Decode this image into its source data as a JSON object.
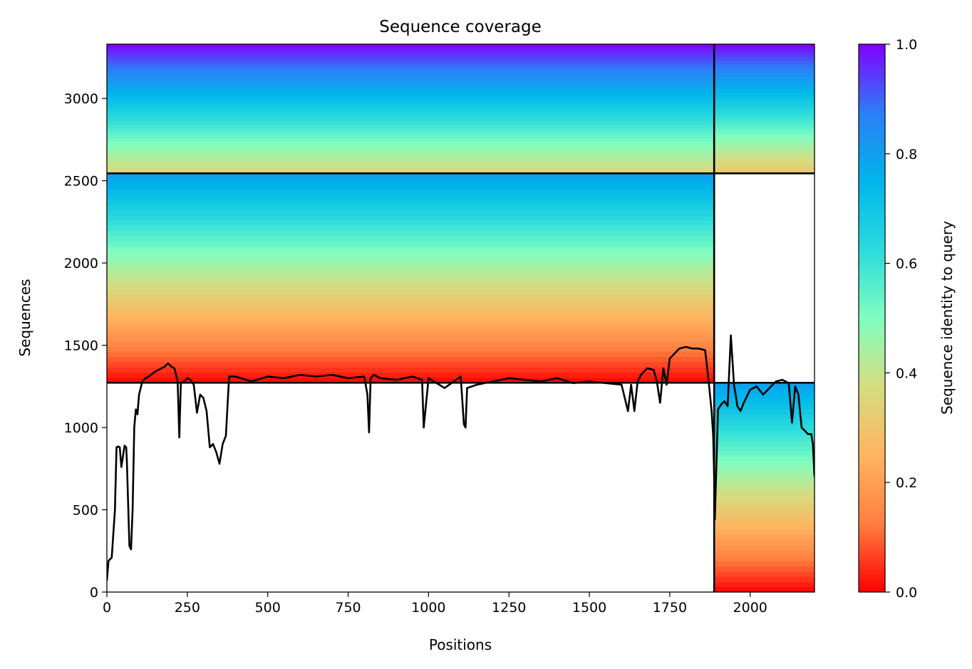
{
  "chart_data": {
    "type": "heatmap",
    "title": "Sequence coverage",
    "xlabel": "Positions",
    "ylabel": "Sequences",
    "xlim": [
      0,
      2200
    ],
    "ylim": [
      0,
      3330
    ],
    "xticks": [
      0,
      250,
      500,
      750,
      1000,
      1250,
      1500,
      1750,
      2000
    ],
    "yticks": [
      0,
      500,
      1000,
      1500,
      2000,
      2500,
      3000
    ],
    "colorbar": {
      "label": "Sequence identity to query",
      "range": [
        0,
        1
      ],
      "ticks": [
        "0.0",
        "0.2",
        "0.4",
        "0.6",
        "0.8",
        "1.0"
      ],
      "colormap": [
        "#ff0000",
        "#ff7f41",
        "#ffb560",
        "#d4dd80",
        "#80fec0",
        "#2adcdc",
        "#00b5eb",
        "#2c7ef7",
        "#8000ff"
      ]
    },
    "boundaries": {
      "vertical_x": 1888,
      "horizontal_upper_y": 2545,
      "horizontal_right_y": 1272
    },
    "segments": [
      {
        "x_start": 0,
        "x_end": 1888,
        "y_start": 1272,
        "y_end": 2545,
        "identity_bottom": 0.0,
        "identity_top": 0.8
      },
      {
        "x_start": 0,
        "x_end": 1888,
        "y_start": 2545,
        "y_end": 3330,
        "identity_bottom": 0.35,
        "identity_top": 1.0
      },
      {
        "x_start": 1888,
        "x_end": 2200,
        "y_start": 2545,
        "y_end": 3330,
        "identity_bottom": 0.3,
        "identity_top": 1.0
      },
      {
        "x_start": 1888,
        "x_end": 2200,
        "y_start": 0,
        "y_end": 1272,
        "identity_bottom": 0.0,
        "identity_top": 0.8
      }
    ],
    "coverage": {
      "x": [
        0,
        5,
        15,
        25,
        30,
        35,
        40,
        45,
        55,
        60,
        62,
        70,
        75,
        80,
        85,
        90,
        95,
        100,
        110,
        120,
        130,
        150,
        170,
        180,
        190,
        200,
        210,
        220,
        225,
        230,
        240,
        250,
        260,
        270,
        280,
        290,
        300,
        310,
        320,
        330,
        340,
        350,
        360,
        370,
        380,
        400,
        450,
        500,
        550,
        600,
        650,
        700,
        750,
        800,
        810,
        815,
        820,
        830,
        850,
        900,
        950,
        980,
        985,
        1000,
        1050,
        1100,
        1110,
        1115,
        1120,
        1150,
        1200,
        1250,
        1300,
        1350,
        1400,
        1450,
        1500,
        1550,
        1600,
        1620,
        1630,
        1640,
        1650,
        1660,
        1680,
        1700,
        1710,
        1720,
        1730,
        1740,
        1750,
        1760,
        1770,
        1780,
        1800,
        1820,
        1840,
        1860,
        1870,
        1880,
        1885,
        1888,
        1890,
        1900,
        1910,
        1920,
        1930,
        1935,
        1940,
        1950,
        1955,
        1960,
        1970,
        1980,
        2000,
        2020,
        2040,
        2060,
        2080,
        2100,
        2120,
        2130,
        2140,
        2150,
        2160,
        2170,
        2180,
        2190,
        2195,
        2200
      ],
      "y": [
        70,
        190,
        210,
        500,
        880,
        885,
        880,
        760,
        890,
        880,
        800,
        280,
        260,
        500,
        1000,
        1110,
        1080,
        1200,
        1280,
        1300,
        1310,
        1340,
        1360,
        1370,
        1390,
        1370,
        1360,
        1280,
        940,
        1270,
        1280,
        1300,
        1290,
        1260,
        1090,
        1200,
        1180,
        1100,
        880,
        900,
        850,
        780,
        900,
        950,
        1310,
        1310,
        1280,
        1310,
        1300,
        1320,
        1310,
        1320,
        1300,
        1310,
        1200,
        970,
        1300,
        1320,
        1300,
        1290,
        1310,
        1290,
        1000,
        1300,
        1240,
        1310,
        1020,
        1000,
        1240,
        1260,
        1280,
        1300,
        1290,
        1280,
        1300,
        1270,
        1280,
        1270,
        1260,
        1100,
        1260,
        1100,
        1280,
        1320,
        1360,
        1350,
        1280,
        1150,
        1360,
        1260,
        1420,
        1440,
        1460,
        1480,
        1490,
        1480,
        1480,
        1470,
        1300,
        1100,
        950,
        700,
        440,
        1110,
        1140,
        1160,
        1130,
        1350,
        1560,
        1250,
        1200,
        1130,
        1100,
        1150,
        1230,
        1250,
        1200,
        1240,
        1280,
        1290,
        1270,
        1030,
        1250,
        1200,
        1000,
        980,
        960,
        960,
        900,
        700
      ]
    }
  }
}
